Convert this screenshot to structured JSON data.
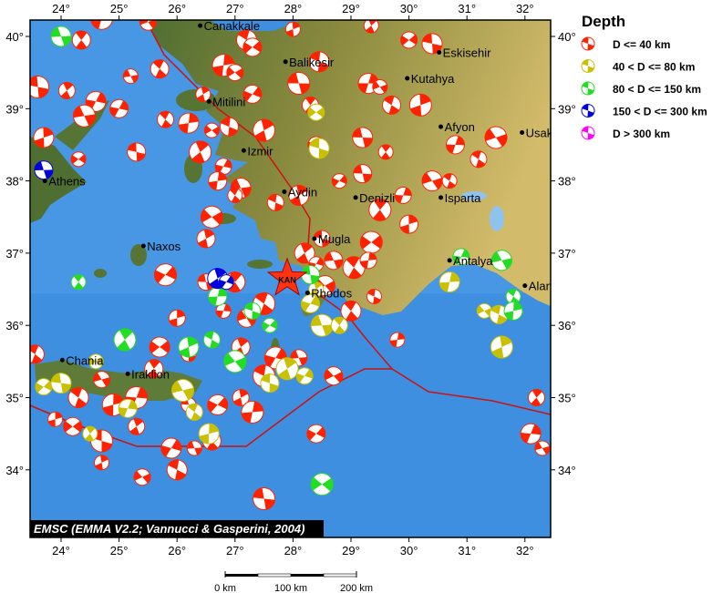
{
  "map": {
    "credit": "EMSC (EMMA V2.2; Vannucci & Gasperini, 2004)",
    "lon_ticks": [
      "24°",
      "25°",
      "26°",
      "27°",
      "28°",
      "29°",
      "30°",
      "31°",
      "32°"
    ],
    "lat_ticks": [
      "40°",
      "39°",
      "38°",
      "37°",
      "36°",
      "35°",
      "34°"
    ],
    "lon_values": [
      24,
      25,
      26,
      27,
      28,
      29,
      30,
      31,
      32
    ],
    "lat_values": [
      40,
      39,
      38,
      37,
      36,
      35,
      34
    ],
    "colors": {
      "sea": "#3f8fe0",
      "land_west": "#4f6e32",
      "land_east": "#d2bb6a",
      "plate_boundary": "#cc1111",
      "shallow": "#ff2200",
      "intermediate": "#c8c000",
      "mid_deep": "#22dd22",
      "deep": "#0000dd",
      "very_deep": "#ff00ff"
    },
    "epicenter": {
      "label": "KAN",
      "lon": 27.9,
      "lat": 36.65,
      "icon": "star-icon"
    },
    "cities": [
      {
        "name": "Canakkale",
        "lon": 26.4,
        "lat": 40.15
      },
      {
        "name": "Balikesir",
        "lon": 27.87,
        "lat": 39.65
      },
      {
        "name": "Eskisehir",
        "lon": 30.52,
        "lat": 39.78
      },
      {
        "name": "Kutahya",
        "lon": 29.97,
        "lat": 39.42
      },
      {
        "name": "Mitilini",
        "lon": 26.55,
        "lat": 39.1
      },
      {
        "name": "Izmir",
        "lon": 27.15,
        "lat": 38.42
      },
      {
        "name": "Afyon",
        "lon": 30.55,
        "lat": 38.75
      },
      {
        "name": "Usak",
        "lon": 31.95,
        "lat": 38.67
      },
      {
        "name": "Aydin",
        "lon": 27.85,
        "lat": 37.85
      },
      {
        "name": "Denizli",
        "lon": 29.08,
        "lat": 37.77
      },
      {
        "name": "Isparta",
        "lon": 30.55,
        "lat": 37.77
      },
      {
        "name": "Mugla",
        "lon": 28.37,
        "lat": 37.2
      },
      {
        "name": "Antalya",
        "lon": 30.7,
        "lat": 36.9
      },
      {
        "name": "Alanya",
        "lon": 32.0,
        "lat": 36.55
      },
      {
        "name": "Rhodos",
        "lon": 28.25,
        "lat": 36.45
      },
      {
        "name": "Athens",
        "lon": 23.72,
        "lat": 38.0
      },
      {
        "name": "Naxos",
        "lon": 25.42,
        "lat": 37.1
      },
      {
        "name": "Chania",
        "lon": 24.02,
        "lat": 35.52
      },
      {
        "name": "Iraklion",
        "lon": 25.15,
        "lat": 35.33
      }
    ],
    "events": {
      "shallow": [
        [
          24.35,
          39.95
        ],
        [
          24.7,
          40.25
        ],
        [
          25.5,
          40.2
        ],
        [
          27.2,
          39.95
        ],
        [
          28.0,
          40.1
        ],
        [
          27.3,
          39.85
        ],
        [
          23.6,
          39.3
        ],
        [
          24.1,
          39.25
        ],
        [
          24.6,
          39.1
        ],
        [
          25.2,
          39.45
        ],
        [
          25.7,
          39.55
        ],
        [
          26.8,
          39.6
        ],
        [
          27.0,
          39.5
        ],
        [
          28.45,
          39.65
        ],
        [
          26.45,
          39.2
        ],
        [
          27.3,
          39.2
        ],
        [
          28.1,
          39.35
        ],
        [
          28.3,
          39.05
        ],
        [
          29.3,
          39.35
        ],
        [
          29.5,
          39.3
        ],
        [
          29.7,
          39.05
        ],
        [
          30.2,
          39.05
        ],
        [
          30.0,
          39.95
        ],
        [
          30.4,
          39.9
        ],
        [
          29.35,
          40.15
        ],
        [
          25.0,
          39.0
        ],
        [
          24.4,
          38.9
        ],
        [
          25.8,
          38.85
        ],
        [
          26.2,
          38.8
        ],
        [
          26.6,
          38.7
        ],
        [
          26.9,
          38.75
        ],
        [
          27.5,
          38.7
        ],
        [
          28.4,
          38.5
        ],
        [
          29.2,
          38.6
        ],
        [
          29.6,
          38.4
        ],
        [
          30.8,
          38.5
        ],
        [
          31.5,
          38.6
        ],
        [
          31.2,
          38.3
        ],
        [
          23.7,
          38.6
        ],
        [
          24.3,
          38.3
        ],
        [
          25.3,
          38.4
        ],
        [
          26.4,
          38.4
        ],
        [
          26.8,
          38.2
        ],
        [
          27.1,
          37.9
        ],
        [
          27.0,
          37.8
        ],
        [
          26.7,
          38.0
        ],
        [
          26.6,
          37.5
        ],
        [
          27.7,
          37.7
        ],
        [
          28.1,
          37.8
        ],
        [
          28.8,
          38.0
        ],
        [
          29.2,
          38.1
        ],
        [
          29.5,
          37.6
        ],
        [
          29.9,
          37.8
        ],
        [
          30.4,
          38.0
        ],
        [
          30.7,
          38.0
        ],
        [
          30.0,
          37.4
        ],
        [
          29.35,
          37.15
        ],
        [
          28.5,
          37.2
        ],
        [
          28.2,
          37.0
        ],
        [
          28.4,
          36.85
        ],
        [
          28.7,
          36.9
        ],
        [
          29.05,
          36.8
        ],
        [
          29.3,
          36.9
        ],
        [
          28.55,
          36.55
        ],
        [
          29.4,
          36.4
        ],
        [
          26.5,
          37.2
        ],
        [
          25.8,
          36.7
        ],
        [
          26.5,
          36.6
        ],
        [
          27.0,
          36.6
        ],
        [
          26.8,
          36.2
        ],
        [
          27.2,
          36.1
        ],
        [
          27.5,
          36.3
        ],
        [
          26.0,
          36.1
        ],
        [
          25.7,
          35.7
        ],
        [
          26.2,
          35.6
        ],
        [
          27.1,
          35.7
        ],
        [
          27.7,
          35.55
        ],
        [
          28.1,
          35.55
        ],
        [
          29.0,
          36.2
        ],
        [
          29.8,
          35.8
        ],
        [
          28.7,
          35.3
        ],
        [
          27.5,
          35.3
        ],
        [
          27.1,
          35.0
        ],
        [
          26.7,
          34.9
        ],
        [
          26.2,
          34.9
        ],
        [
          25.6,
          35.4
        ],
        [
          25.3,
          35.0
        ],
        [
          24.7,
          35.25
        ],
        [
          24.3,
          35.0
        ],
        [
          23.9,
          34.7
        ],
        [
          24.2,
          34.6
        ],
        [
          24.7,
          34.4
        ],
        [
          25.3,
          34.6
        ],
        [
          25.9,
          34.3
        ],
        [
          26.3,
          34.3
        ],
        [
          26.6,
          34.4
        ],
        [
          27.3,
          34.8
        ],
        [
          25.4,
          33.9
        ],
        [
          26.0,
          34.0
        ],
        [
          24.7,
          34.1
        ],
        [
          28.4,
          34.5
        ],
        [
          27.5,
          33.6
        ],
        [
          32.2,
          35.0
        ],
        [
          32.1,
          34.5
        ],
        [
          32.3,
          34.3
        ],
        [
          23.55,
          35.6
        ],
        [
          24.9,
          34.9
        ]
      ],
      "intermediate": [
        [
          28.4,
          38.95
        ],
        [
          28.45,
          38.45
        ],
        [
          28.4,
          36.5
        ],
        [
          28.3,
          36.3
        ],
        [
          28.5,
          36.0
        ],
        [
          28.8,
          36.0
        ],
        [
          30.7,
          36.6
        ],
        [
          31.3,
          36.2
        ],
        [
          31.55,
          36.15
        ],
        [
          31.6,
          35.7
        ],
        [
          23.7,
          35.15
        ],
        [
          24.0,
          35.2
        ],
        [
          24.5,
          34.5
        ],
        [
          25.15,
          34.85
        ],
        [
          26.1,
          35.1
        ],
        [
          26.3,
          34.8
        ],
        [
          26.55,
          34.5
        ],
        [
          24.6,
          35.5
        ],
        [
          27.6,
          35.2
        ],
        [
          27.9,
          35.4
        ],
        [
          28.2,
          35.3
        ]
      ],
      "mid_deep": [
        [
          24.0,
          40.0
        ],
        [
          24.3,
          36.6
        ],
        [
          26.7,
          36.4
        ],
        [
          27.0,
          35.5
        ],
        [
          26.6,
          35.8
        ],
        [
          26.2,
          35.7
        ],
        [
          27.6,
          36.0
        ],
        [
          28.3,
          36.7
        ],
        [
          25.1,
          35.8
        ],
        [
          30.9,
          36.95
        ],
        [
          31.6,
          36.9
        ],
        [
          31.8,
          36.4
        ],
        [
          31.8,
          36.2
        ],
        [
          28.5,
          33.8
        ],
        [
          27.3,
          36.2
        ]
      ],
      "deep": [
        [
          26.7,
          36.65
        ],
        [
          26.85,
          36.6
        ],
        [
          23.7,
          38.15
        ]
      ],
      "very_deep": []
    }
  },
  "legend": {
    "title": "Depth",
    "icon": "beachball-icon",
    "items": [
      {
        "label": "D <= 40 km",
        "color": "#ff2200"
      },
      {
        "label": "40 < D <= 80 km",
        "color": "#c8c000"
      },
      {
        "label": "80 < D <= 150 km",
        "color": "#22dd22"
      },
      {
        "label": "150 < D <= 300 km",
        "color": "#0000dd"
      },
      {
        "label": "D > 300 km",
        "color": "#ff00ff"
      }
    ]
  },
  "scale_bar": {
    "labels": [
      "0 km",
      "100 km",
      "200 km"
    ]
  }
}
